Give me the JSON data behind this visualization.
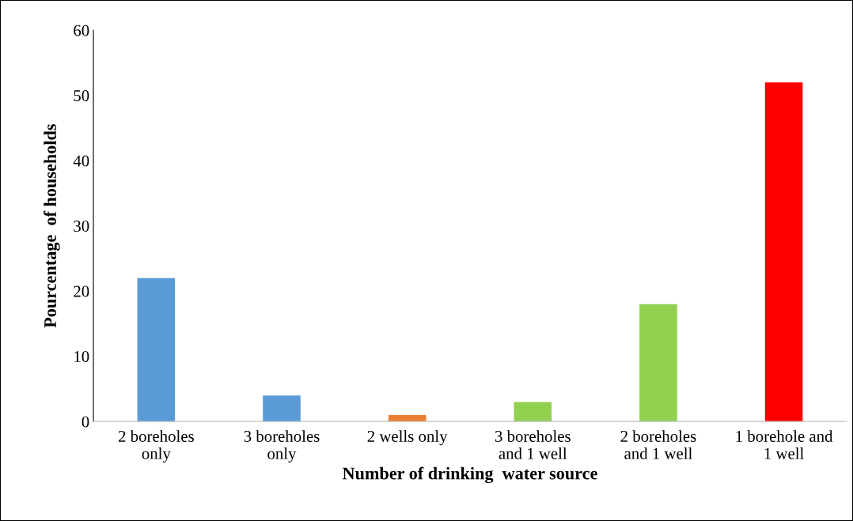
{
  "chart_data": {
    "type": "bar",
    "xlabel": "Number of drinking  water source",
    "ylabel": "Pourcentage  of households",
    "categories": [
      "2 boreholes\nonly",
      "3 boreholes\nonly",
      "2 wells only",
      "3 boreholes\nand 1 well",
      "2 boreholes\nand 1 well",
      "1 borehole and\n1 well"
    ],
    "values": [
      22,
      4,
      1,
      3,
      18,
      52
    ],
    "colors": [
      "#5b9bd5",
      "#5b9bd5",
      "#ed7d31",
      "#92d050",
      "#92d050",
      "#ff0000"
    ],
    "ylim": [
      0,
      60
    ],
    "yticks": [
      0,
      10,
      20,
      30,
      40,
      50,
      60
    ],
    "grid": false,
    "legend": false
  }
}
